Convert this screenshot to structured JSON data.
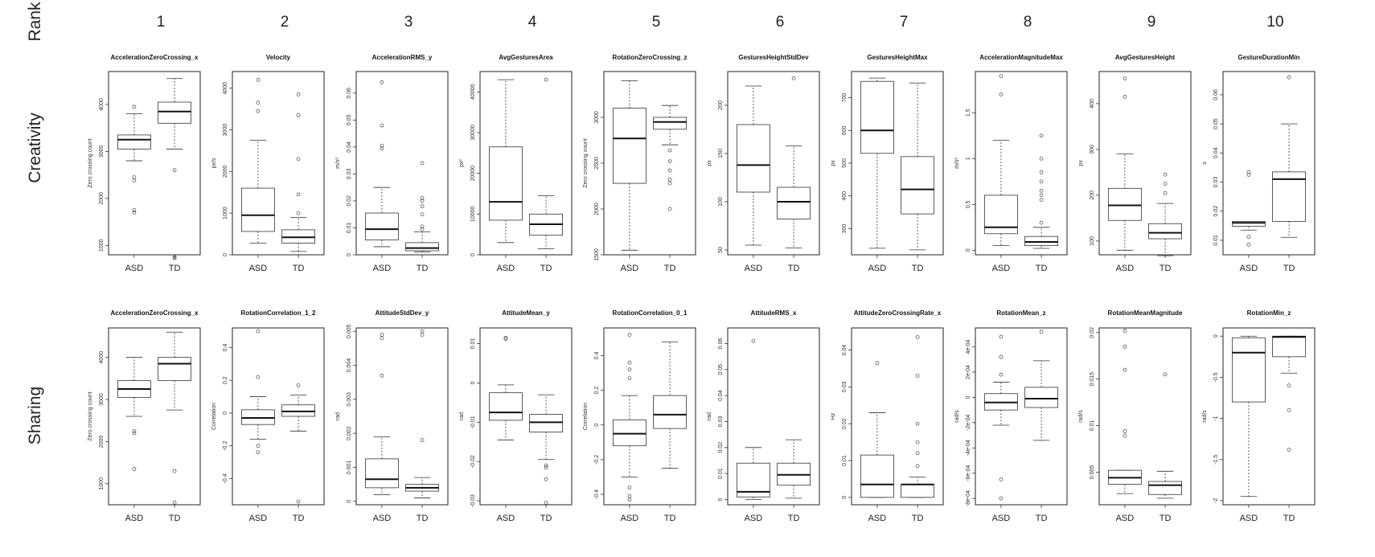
{
  "rank_label": "Rank",
  "ranks": [
    "1",
    "2",
    "3",
    "4",
    "5",
    "6",
    "7",
    "8",
    "9",
    "10"
  ],
  "row_labels": [
    "Creativity",
    "Sharing"
  ],
  "categories": [
    "ASD",
    "TD"
  ],
  "chart_data": [
    {
      "type": "box",
      "row": "Creativity",
      "rank": 1,
      "title": "AccelerationZeroCrossing_x",
      "ylabel": "Zero crossing count",
      "ylim": [
        800,
        4700
      ],
      "yticks": [
        1000,
        2000,
        3000,
        4000
      ],
      "boxes": [
        {
          "category": "ASD",
          "min": 2800,
          "q1": 3050,
          "median": 3250,
          "q3": 3350,
          "max": 3800,
          "outliers": [
            3950,
            2450,
            2380,
            1750,
            1700
          ]
        },
        {
          "category": "TD",
          "min": 3050,
          "q1": 3600,
          "median": 3850,
          "q3": 4050,
          "max": 4550,
          "outliers": [
            2600,
            750,
            730
          ]
        }
      ]
    },
    {
      "type": "box",
      "row": "Creativity",
      "rank": 2,
      "title": "Velocity",
      "ylabel": "px/s",
      "ylim": [
        0,
        4400
      ],
      "yticks": [
        0,
        1000,
        2000,
        3000,
        4000
      ],
      "boxes": [
        {
          "category": "ASD",
          "min": 280,
          "q1": 560,
          "median": 950,
          "q3": 1600,
          "max": 2750,
          "outliers": [
            3450,
            3650,
            4200
          ]
        },
        {
          "category": "TD",
          "min": 80,
          "q1": 280,
          "median": 420,
          "q3": 600,
          "max": 900,
          "outliers": [
            1000,
            1450,
            2300,
            3350,
            3850
          ]
        }
      ]
    },
    {
      "type": "box",
      "row": "Creativity",
      "rank": 3,
      "title": "AccelerationRMS_y",
      "ylabel": "m/s²",
      "ylim": [
        0,
        0.068
      ],
      "yticks": [
        0.0,
        0.01,
        0.02,
        0.03,
        0.04,
        0.05,
        0.06
      ],
      "boxes": [
        {
          "category": "ASD",
          "min": 0.003,
          "q1": 0.0055,
          "median": 0.0095,
          "q3": 0.0155,
          "max": 0.025,
          "outliers": [
            0.0395,
            0.0405,
            0.048,
            0.064
          ]
        },
        {
          "category": "TD",
          "min": 0.001,
          "q1": 0.0015,
          "median": 0.0025,
          "q3": 0.0045,
          "max": 0.0085,
          "outliers": [
            0.0095,
            0.0105,
            0.015,
            0.018,
            0.02,
            0.021,
            0.034
          ]
        }
      ]
    },
    {
      "type": "box",
      "row": "Creativity",
      "rank": 4,
      "title": "AvgGesturesArea",
      "ylabel": "px²",
      "ylim": [
        0,
        45000
      ],
      "yticks": [
        0,
        10000,
        20000,
        30000,
        40000
      ],
      "boxes": [
        {
          "category": "ASD",
          "min": 3000,
          "q1": 8500,
          "median": 13000,
          "q3": 26500,
          "max": 43000,
          "outliers": []
        },
        {
          "category": "TD",
          "min": 1500,
          "q1": 4800,
          "median": 7500,
          "q3": 10000,
          "max": 14500,
          "outliers": [
            43000
          ]
        }
      ]
    },
    {
      "type": "box",
      "row": "Creativity",
      "rank": 5,
      "title": "RotationZeroCrossing_z",
      "ylabel": "Zero crossing count",
      "ylim": [
        1500,
        3500
      ],
      "yticks": [
        1500,
        2000,
        2500,
        3000
      ],
      "boxes": [
        {
          "category": "ASD",
          "min": 1550,
          "q1": 2280,
          "median": 2770,
          "q3": 3100,
          "max": 3400,
          "outliers": []
        },
        {
          "category": "TD",
          "min": 2700,
          "q1": 2870,
          "median": 2950,
          "q3": 3000,
          "max": 3130,
          "outliers": [
            2640,
            2520,
            2420,
            2320,
            2280,
            2000
          ]
        }
      ]
    },
    {
      "type": "box",
      "row": "Creativity",
      "rank": 6,
      "title": "GesturesHeightStdDev",
      "ylabel": "px",
      "ylim": [
        45,
        235
      ],
      "yticks": [
        50,
        100,
        150,
        200
      ],
      "boxes": [
        {
          "category": "ASD",
          "min": 55,
          "q1": 110,
          "median": 138,
          "q3": 180,
          "max": 220,
          "outliers": []
        },
        {
          "category": "TD",
          "min": 52,
          "q1": 82,
          "median": 100,
          "q3": 115,
          "max": 158,
          "outliers": [
            228
          ]
        }
      ]
    },
    {
      "type": "box",
      "row": "Creativity",
      "rank": 7,
      "title": "GesturesHeightMax",
      "ylabel": "px",
      "ylim": [
        220,
        780
      ],
      "yticks": [
        300,
        400,
        500,
        600,
        700
      ],
      "boxes": [
        {
          "category": "ASD",
          "min": 240,
          "q1": 530,
          "median": 600,
          "q3": 750,
          "max": 760,
          "outliers": []
        },
        {
          "category": "TD",
          "min": 235,
          "q1": 345,
          "median": 420,
          "q3": 520,
          "max": 745,
          "outliers": []
        }
      ]
    },
    {
      "type": "box",
      "row": "Creativity",
      "rank": 8,
      "title": "AccelerationMagnitudeMax",
      "ylabel": "m/s²",
      "ylim": [
        -0.05,
        1.95
      ],
      "yticks": [
        0.0,
        0.5,
        1.0,
        1.5
      ],
      "boxes": [
        {
          "category": "ASD",
          "min": 0.05,
          "q1": 0.18,
          "median": 0.25,
          "q3": 0.6,
          "max": 1.2,
          "outliers": [
            1.7,
            1.9
          ]
        },
        {
          "category": "TD",
          "min": 0.02,
          "q1": 0.05,
          "median": 0.09,
          "q3": 0.15,
          "max": 0.25,
          "outliers": [
            0.3,
            0.55,
            0.6,
            0.65,
            0.75,
            0.85,
            1.0,
            1.25
          ]
        }
      ]
    },
    {
      "type": "box",
      "row": "Creativity",
      "rank": 9,
      "title": "AvgGesturesHeight",
      "ylabel": "px",
      "ylim": [
        70,
        470
      ],
      "yticks": [
        100,
        200,
        300,
        400
      ],
      "boxes": [
        {
          "category": "ASD",
          "min": 80,
          "q1": 145,
          "median": 178,
          "q3": 215,
          "max": 290,
          "outliers": [
            415,
            455
          ]
        },
        {
          "category": "TD",
          "min": 68,
          "q1": 105,
          "median": 118,
          "q3": 138,
          "max": 182,
          "outliers": [
            205,
            225,
            245
          ]
        }
      ]
    },
    {
      "type": "box",
      "row": "Creativity",
      "rank": 10,
      "title": "GestureDurationMin",
      "ylabel": "s",
      "ylim": [
        0.005,
        0.068
      ],
      "yticks": [
        0.01,
        0.02,
        0.03,
        0.04,
        0.05,
        0.06
      ],
      "boxes": [
        {
          "category": "ASD",
          "min": 0.0135,
          "q1": 0.0148,
          "median": 0.016,
          "q3": 0.0165,
          "max": 0.0165,
          "outliers": [
            0.0325,
            0.0335,
            0.0112,
            0.0085
          ]
        },
        {
          "category": "TD",
          "min": 0.011,
          "q1": 0.0165,
          "median": 0.031,
          "q3": 0.0335,
          "max": 0.05,
          "outliers": [
            0.066
          ]
        }
      ]
    },
    {
      "type": "box",
      "row": "Sharing",
      "rank": 1,
      "title": "AccelerationZeroCrossing_x",
      "ylabel": "Zero crossing count",
      "ylim": [
        500,
        4700
      ],
      "yticks": [
        1000,
        2000,
        3000,
        4000
      ],
      "boxes": [
        {
          "category": "ASD",
          "min": 2600,
          "q1": 3050,
          "median": 3250,
          "q3": 3450,
          "max": 4000,
          "outliers": [
            2250,
            2200,
            1350
          ]
        },
        {
          "category": "TD",
          "min": 2750,
          "q1": 3450,
          "median": 3850,
          "q3": 4000,
          "max": 4600,
          "outliers": [
            1300,
            550
          ]
        }
      ]
    },
    {
      "type": "box",
      "row": "Sharing",
      "rank": 2,
      "title": "RotationCorrelation_1_2",
      "ylabel": "Correlation",
      "ylim": [
        -0.56,
        0.52
      ],
      "yticks": [
        -0.4,
        -0.2,
        0.0,
        0.2,
        0.4
      ],
      "boxes": [
        {
          "category": "ASD",
          "min": -0.16,
          "q1": -0.07,
          "median": -0.03,
          "q3": 0.02,
          "max": 0.1,
          "outliers": [
            0.22,
            0.5,
            -0.2,
            -0.24
          ]
        },
        {
          "category": "TD",
          "min": -0.11,
          "q1": -0.02,
          "median": 0.01,
          "q3": 0.05,
          "max": 0.11,
          "outliers": [
            0.17,
            -0.54
          ]
        }
      ]
    },
    {
      "type": "box",
      "row": "Sharing",
      "rank": 3,
      "title": "AttitudeStdDev_y",
      "ylabel": "rad",
      "ylim": [
        -0.0001,
        0.0051
      ],
      "yticks": [
        0.0,
        0.001,
        0.002,
        0.003,
        0.004,
        0.005
      ],
      "boxes": [
        {
          "category": "ASD",
          "min": 0.0002,
          "q1": 0.0004,
          "median": 0.00065,
          "q3": 0.00125,
          "max": 0.0019,
          "outliers": [
            0.0037,
            0.0048,
            0.0049
          ]
        },
        {
          "category": "TD",
          "min": 0.0001,
          "q1": 0.0003,
          "median": 0.0004,
          "q3": 0.0005,
          "max": 0.0007,
          "outliers": [
            0.0018,
            0.0049,
            0.005
          ]
        }
      ]
    },
    {
      "type": "box",
      "row": "Sharing",
      "rank": 4,
      "title": "AttitudeMean_y",
      "ylabel": "rad",
      "ylim": [
        -0.031,
        0.014
      ],
      "yticks": [
        -0.03,
        -0.02,
        -0.01,
        0.0,
        0.01
      ],
      "boxes": [
        {
          "category": "ASD",
          "min": -0.0145,
          "q1": -0.0095,
          "median": -0.0075,
          "q3": -0.0025,
          "max": -0.0005,
          "outliers": [
            0.0115,
            0.0112
          ]
        },
        {
          "category": "TD",
          "min": -0.0195,
          "q1": -0.0125,
          "median": -0.01,
          "q3": -0.008,
          "max": -0.003,
          "outliers": [
            -0.021,
            -0.0215,
            -0.0245,
            -0.0305
          ]
        }
      ]
    },
    {
      "type": "box",
      "row": "Sharing",
      "rank": 5,
      "title": "RotationCorrelation_0_1",
      "ylabel": "Correlation",
      "ylim": [
        -0.46,
        0.56
      ],
      "yticks": [
        -0.4,
        -0.2,
        0.0,
        0.2,
        0.4
      ],
      "boxes": [
        {
          "category": "ASD",
          "min": -0.3,
          "q1": -0.12,
          "median": -0.05,
          "q3": 0.03,
          "max": 0.17,
          "outliers": [
            0.27,
            0.32,
            0.36,
            0.52,
            -0.36,
            -0.41,
            -0.43
          ]
        },
        {
          "category": "TD",
          "min": -0.25,
          "q1": -0.02,
          "median": 0.06,
          "q3": 0.17,
          "max": 0.48,
          "outliers": []
        }
      ]
    },
    {
      "type": "box",
      "row": "Sharing",
      "rank": 6,
      "title": "AttitudeRMS_x",
      "ylabel": "rad",
      "ylim": [
        -0.002,
        0.066
      ],
      "yticks": [
        0.0,
        0.01,
        0.02,
        0.03,
        0.04,
        0.05,
        0.06
      ],
      "boxes": [
        {
          "category": "ASD",
          "min": 0.0,
          "q1": 0.001,
          "median": 0.003,
          "q3": 0.014,
          "max": 0.02,
          "outliers": [
            0.061
          ]
        },
        {
          "category": "TD",
          "min": 0.0005,
          "q1": 0.0055,
          "median": 0.0095,
          "q3": 0.014,
          "max": 0.023,
          "outliers": []
        }
      ]
    },
    {
      "type": "box",
      "row": "Sharing",
      "rank": 7,
      "title": "AttitudeZeroCrossingRate_x",
      "ylabel": "Hz",
      "ylim": [
        -0.002,
        0.046
      ],
      "yticks": [
        0.0,
        0.01,
        0.02,
        0.03,
        0.04
      ],
      "boxes": [
        {
          "category": "ASD",
          "min": 0.0,
          "q1": 0.0,
          "median": 0.0035,
          "q3": 0.0115,
          "max": 0.023,
          "outliers": [
            0.0365
          ]
        },
        {
          "category": "TD",
          "min": 0.0,
          "q1": 0.0,
          "median": 0.0035,
          "q3": 0.0035,
          "max": 0.0055,
          "outliers": [
            0.0085,
            0.012,
            0.015,
            0.02,
            0.033,
            0.0435
          ]
        }
      ]
    },
    {
      "type": "box",
      "row": "Sharing",
      "rank": 8,
      "title": "RotationMean_z",
      "ylabel": "rad/s",
      "ylim": [
        -0.00085,
        0.00055
      ],
      "yticks": [
        -0.0008,
        -0.0006,
        -0.0004,
        -0.0002,
        0.0,
        0.0002,
        0.0004
      ],
      "boxes": [
        {
          "category": "ASD",
          "min": -0.00022,
          "q1": -0.0001,
          "median": -4e-05,
          "q3": 3e-05,
          "max": 0.00012,
          "outliers": [
            0.00018,
            0.00032,
            0.00048,
            -0.00065,
            -0.0008
          ]
        },
        {
          "category": "TD",
          "min": -0.00034,
          "q1": -8e-05,
          "median": -1e-05,
          "q3": 8e-05,
          "max": 0.00029,
          "outliers": [
            0.00052
          ]
        }
      ]
    },
    {
      "type": "box",
      "row": "Sharing",
      "rank": 9,
      "title": "RotationMeanMagnitude",
      "ylabel": "rad/s",
      "ylim": [
        0.0015,
        0.0205
      ],
      "yticks": [
        0.005,
        0.01,
        0.015,
        0.02
      ],
      "boxes": [
        {
          "category": "ASD",
          "min": 0.0027,
          "q1": 0.0037,
          "median": 0.0044,
          "q3": 0.0052,
          "max": 0.0052,
          "outliers": [
            0.0089,
            0.0094,
            0.016,
            0.0185,
            0.0202
          ]
        },
        {
          "category": "TD",
          "min": 0.0022,
          "q1": 0.0026,
          "median": 0.0036,
          "q3": 0.004,
          "max": 0.0051,
          "outliers": [
            0.0155
          ]
        }
      ]
    },
    {
      "type": "box",
      "row": "Sharing",
      "rank": 10,
      "title": "RotationMin_z",
      "ylabel": "rad/s",
      "ylim": [
        -2.05,
        0.1
      ],
      "yticks": [
        -2.0,
        -1.5,
        -1.0,
        -0.5,
        0.0
      ],
      "boxes": [
        {
          "category": "ASD",
          "min": -1.95,
          "q1": -0.8,
          "median": -0.2,
          "q3": -0.02,
          "max": 0.0,
          "outliers": []
        },
        {
          "category": "TD",
          "min": -0.45,
          "q1": -0.25,
          "median": -0.01,
          "q3": 0.0,
          "max": 0.0,
          "outliers": [
            -0.6,
            -0.9,
            -1.38
          ]
        }
      ]
    }
  ]
}
